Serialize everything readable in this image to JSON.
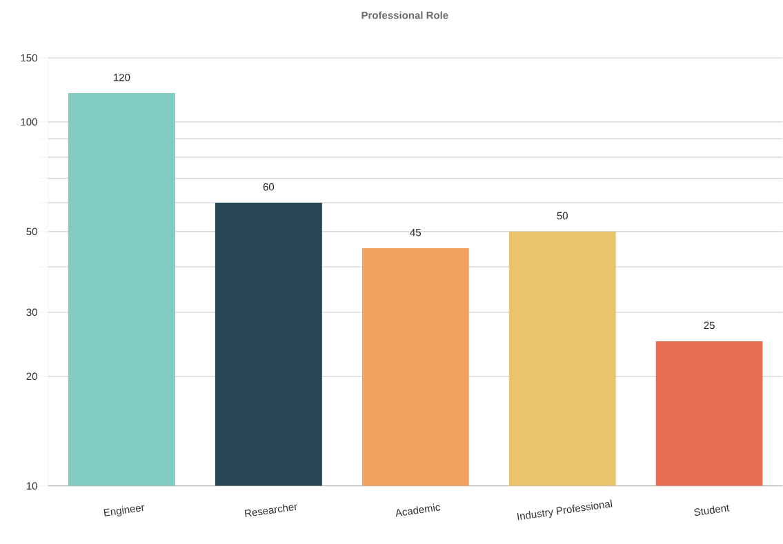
{
  "chart_data": {
    "type": "bar",
    "title": "Professional Role",
    "categories": [
      "Engineer",
      "Researcher",
      "Academic",
      "Industry Professional",
      "Student"
    ],
    "values": [
      120,
      60,
      45,
      50,
      25
    ],
    "colors": [
      "#82cbc3",
      "#264653",
      "#f2a261",
      "#e9c46a",
      "#e76f51"
    ],
    "log": "y",
    "ylim": [
      10,
      150
    ],
    "yticks": [
      10,
      20,
      30,
      {
        "value": 40,
        "label": null
      },
      50,
      {
        "value": 60,
        "label": null
      },
      {
        "value": 70,
        "label": null
      },
      {
        "value": 80,
        "label": null
      },
      {
        "value": 90,
        "label": null
      },
      100,
      150
    ],
    "grid": "y",
    "data_labels": true
  }
}
